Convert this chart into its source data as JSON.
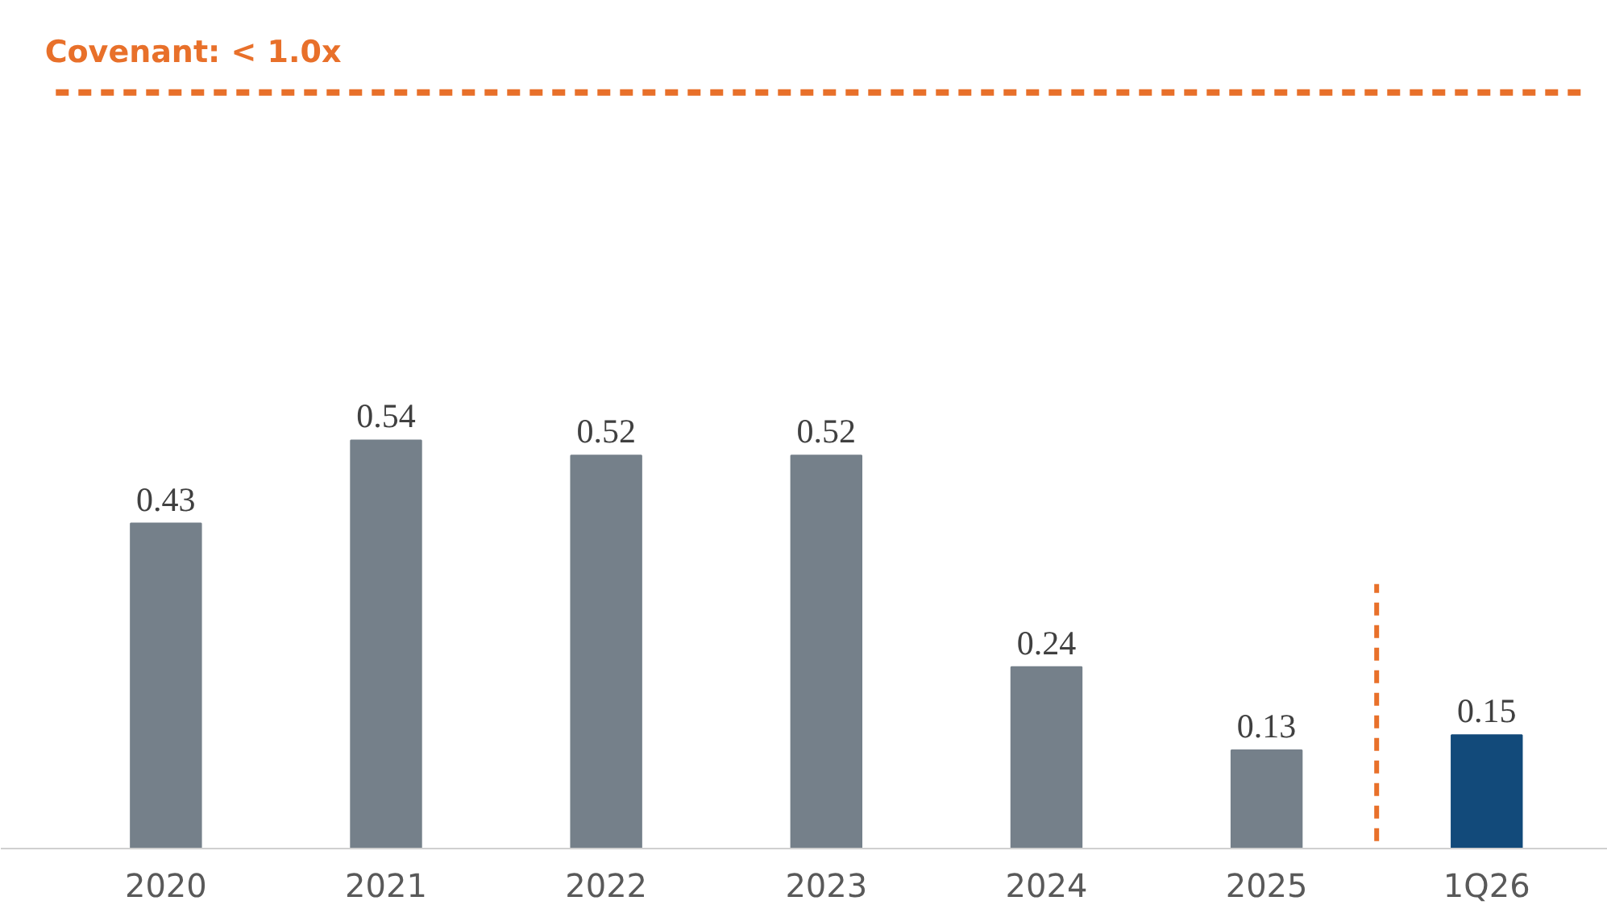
{
  "chart_data": {
    "type": "bar",
    "categories": [
      "2020",
      "2021",
      "2022",
      "2023",
      "2024",
      "2025",
      "1Q26"
    ],
    "values": [
      0.43,
      0.54,
      0.52,
      0.52,
      0.24,
      0.13,
      0.15
    ],
    "colors": [
      "#75808a",
      "#75808a",
      "#75808a",
      "#75808a",
      "#75808a",
      "#75808a",
      "#124a7a"
    ],
    "data_labels": true,
    "ref_lines": [
      {
        "axis": "y",
        "value": 1.0,
        "label": "Covenant: < 1.0x",
        "color": "#e8702a",
        "line_style": "dashed"
      },
      {
        "axis": "x",
        "value": "1Q26",
        "color": "#e8702a",
        "line_style": "dashed"
      }
    ]
  }
}
